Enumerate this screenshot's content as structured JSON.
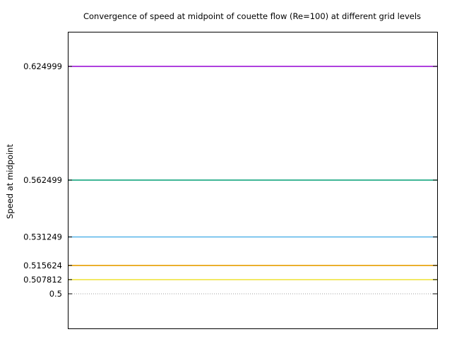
{
  "chart_data": {
    "type": "line",
    "title": "Convergence of speed at midpoint of couette flow (Re=100) at different grid levels",
    "xlabel": "",
    "ylabel": "Speed at midpoint",
    "ylim": [
      0.481,
      0.644
    ],
    "grid": false,
    "yticks": [
      {
        "value": 0.624999,
        "label": "0.624999"
      },
      {
        "value": 0.562499,
        "label": "0.562499"
      },
      {
        "value": 0.531249,
        "label": "0.531249"
      },
      {
        "value": 0.515624,
        "label": "0.515624"
      },
      {
        "value": 0.507812,
        "label": "0.507812"
      },
      {
        "value": 0.5,
        "label": "0.5"
      }
    ],
    "series": [
      {
        "value": 0.624999,
        "color": "#9400d3"
      },
      {
        "value": 0.562499,
        "color": "#009e73"
      },
      {
        "value": 0.531249,
        "color": "#56b4e9"
      },
      {
        "value": 0.515624,
        "color": "#e69f00"
      },
      {
        "value": 0.507812,
        "color": "#f0e442"
      },
      {
        "value": 0.5,
        "color": "#a0a0a0",
        "dotted": true
      }
    ]
  }
}
